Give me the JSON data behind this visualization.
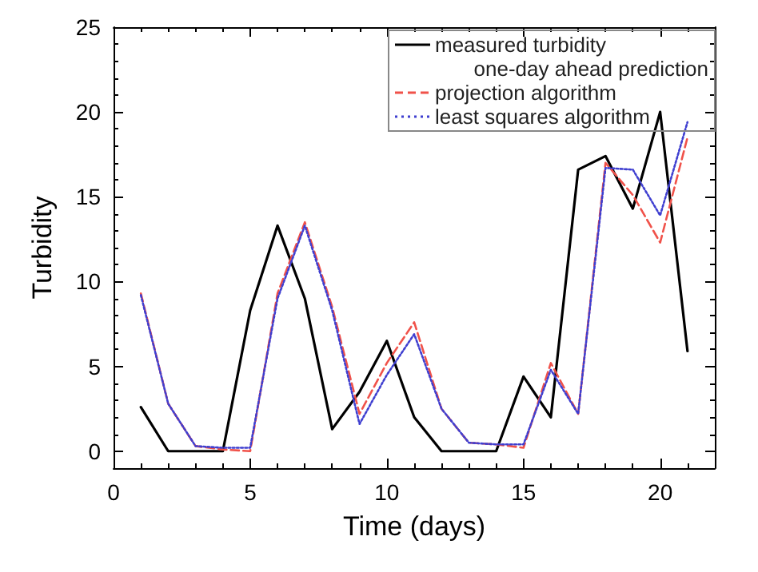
{
  "chart_data": {
    "type": "line",
    "xlabel": "Time (days)",
    "ylabel": "Turbidity",
    "legend_title": "one-day ahead prediction",
    "legend": "top right",
    "grid": false,
    "marker": "none",
    "xlim": [
      0,
      22
    ],
    "xticks": [
      0,
      5,
      10,
      15,
      20
    ],
    "ylim": [
      -1,
      25
    ],
    "yticks": [
      0,
      5,
      10,
      15,
      20,
      25
    ],
    "x": [
      1,
      2,
      3,
      4,
      5,
      6,
      7,
      8,
      9,
      10,
      11,
      12,
      13,
      14,
      15,
      16,
      17,
      18,
      19,
      20,
      21
    ],
    "series": [
      {
        "name": "measured turbidity",
        "color": "#000000",
        "line_style": "solid",
        "values": [
          2.6,
          0,
          0,
          0,
          8.3,
          13.3,
          9,
          1.3,
          3.5,
          6.5,
          2,
          0,
          0,
          0,
          4.4,
          2,
          16.6,
          17.4,
          14.3,
          20,
          5.9
        ]
      },
      {
        "name": "projection algorithm",
        "color": "#f0524a",
        "line_style": "dashed",
        "values": [
          9.3,
          2.8,
          0.3,
          0.1,
          0,
          9.3,
          13.5,
          8.5,
          2.2,
          5.2,
          7.6,
          2.5,
          0.5,
          0.4,
          0.2,
          5.2,
          2.2,
          17,
          15.1,
          12.3,
          18.5
        ]
      },
      {
        "name": "least squares algorithm",
        "color": "#3f3fd0",
        "line_style": "dotted",
        "values": [
          9.2,
          2.8,
          0.3,
          0.2,
          0.2,
          9,
          13.3,
          8.3,
          1.6,
          4.5,
          6.9,
          2.5,
          0.5,
          0.4,
          0.4,
          4.8,
          2.2,
          16.7,
          16.6,
          13.9,
          19.4
        ]
      }
    ]
  }
}
